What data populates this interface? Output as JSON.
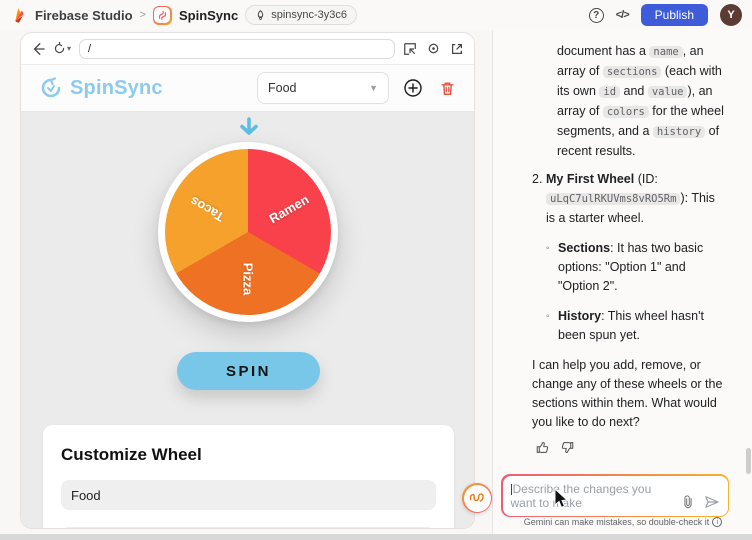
{
  "topbar": {
    "brand": "Firebase Studio",
    "crumb_sep": ">",
    "app_name": "SpinSync",
    "workspace_badge": "spinsync-3y3c6",
    "publish_label": "Publish",
    "avatar_initial": "Y",
    "help_glyph": "?",
    "code_glyph": "</>"
  },
  "preview": {
    "url": "/"
  },
  "app": {
    "logo_text": "SpinSync",
    "wheel_select_value": "Food",
    "spin_label": "SPIN",
    "customize": {
      "title": "Customize Wheel",
      "section_value": "Food"
    },
    "next_badge": "N",
    "wheel": {
      "sections": [
        {
          "label": "Ramen",
          "color": "#f8414b"
        },
        {
          "label": "Pizza",
          "color": "#ee7124"
        },
        {
          "label": "Tacos",
          "color": "#f6a12b"
        }
      ]
    }
  },
  "chat": {
    "message": {
      "p1": [
        {
          "t": "document has a "
        },
        {
          "c": "name"
        },
        {
          "t": ", an array of "
        },
        {
          "c": "sections"
        },
        {
          "t": " (each with its own "
        },
        {
          "c": "id"
        },
        {
          "t": " and "
        },
        {
          "c": "value"
        },
        {
          "t": "), an array of "
        },
        {
          "c": "colors"
        },
        {
          "t": " for the wheel segments, and a "
        },
        {
          "c": "history"
        },
        {
          "t": " of recent results."
        }
      ],
      "item2_number": "2.",
      "item2": [
        {
          "b": "My First Wheel"
        },
        {
          "t": " (ID: "
        },
        {
          "c": "uLqC7ulRKUVms8vRO5Rm"
        },
        {
          "t": "): This is a starter wheel."
        }
      ],
      "sub_marker": "◦",
      "sub1": [
        {
          "b": "Sections"
        },
        {
          "t": ": It has two basic options: \"Option 1\" and \"Option 2\"."
        }
      ],
      "sub2": [
        {
          "b": "History"
        },
        {
          "t": ": This wheel hasn't been spun yet."
        }
      ],
      "p2": "I can help you add, remove, or change any of these wheels or the sections within them. What would you like to do next?"
    },
    "composer": {
      "placeholder": "Describe the changes you want to make"
    },
    "disclaimer": "Gemini can make mistakes, so double-check it"
  },
  "colors": {
    "accent_blue": "#79c7e8",
    "publish_blue": "#3e5bd9",
    "logo_blue": "#8ccbed",
    "trash_red": "#e8503e",
    "gradient_pink": "#f5576c",
    "gradient_orange": "#f6a02b"
  }
}
